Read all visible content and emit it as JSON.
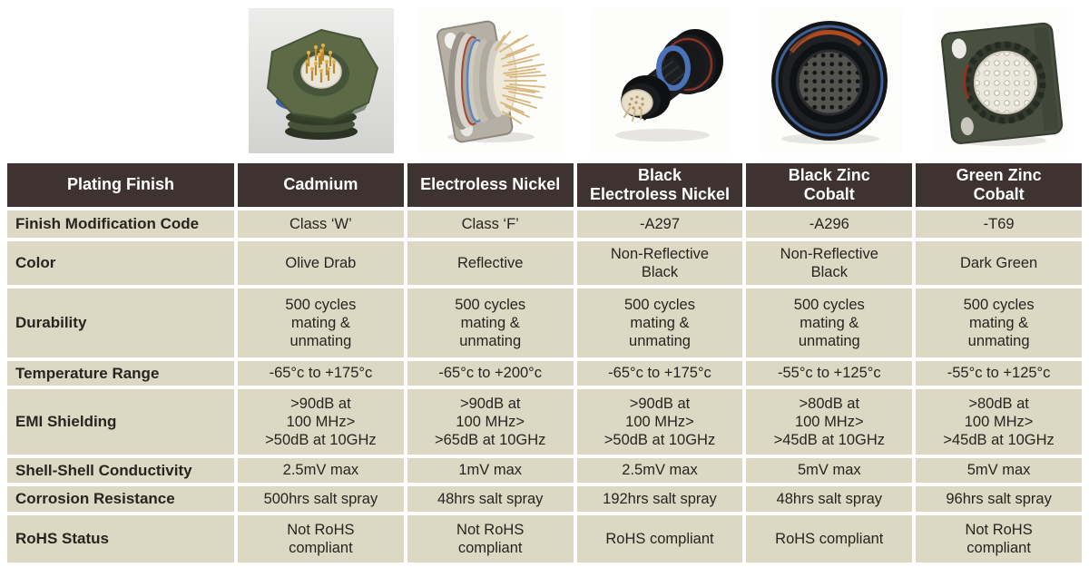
{
  "photos": [
    {
      "icon": "cadmium-connector-photo"
    },
    {
      "icon": "electroless-nickel-connector-photo"
    },
    {
      "icon": "black-electroless-nickel-connector-photo"
    },
    {
      "icon": "black-zinc-cobalt-connector-photo"
    },
    {
      "icon": "green-zinc-cobalt-connector-photo"
    }
  ],
  "table": {
    "header": [
      "Plating Finish",
      "Cadmium",
      "Electroless Nickel",
      "Black\nElectroless Nickel",
      "Black Zinc\nCobalt",
      "Green Zinc\nCobalt"
    ],
    "rows": [
      {
        "label": "Finish Modification Code",
        "cells": [
          "Class ‘W’",
          "Class ‘F’",
          "-A297",
          "-A296",
          "-T69"
        ]
      },
      {
        "label": "Color",
        "cells": [
          "Olive Drab",
          "Reflective",
          "Non-Reflective\nBlack",
          "Non-Reflective\nBlack",
          "Dark Green"
        ]
      },
      {
        "label": "Durability",
        "cells": [
          "500 cycles\nmating &\nunmating",
          "500 cycles\nmating &\nunmating",
          "500 cycles\nmating &\nunmating",
          "500 cycles\nmating &\nunmating",
          "500 cycles\nmating &\nunmating"
        ]
      },
      {
        "label": "Temperature Range",
        "cells": [
          "-65°c to +175°c",
          "-65°c to +200°c",
          "-65°c to +175°c",
          "-55°c to +125°c",
          "-55°c to +125°c"
        ]
      },
      {
        "label": "EMI Shielding",
        "cells": [
          ">90dB at\n100 MHz>\n>50dB at 10GHz",
          ">90dB at\n100 MHz>\n>65dB at 10GHz",
          ">90dB at\n100 MHz>\n>50dB at 10GHz",
          ">80dB at\n100 MHz>\n>45dB at 10GHz",
          ">80dB at\n100 MHz>\n>45dB at 10GHz"
        ]
      },
      {
        "label": "Shell-Shell Conductivity",
        "cells": [
          "2.5mV max",
          "1mV max",
          "2.5mV max",
          "5mV max",
          "5mV max"
        ]
      },
      {
        "label": "Corrosion Resistance",
        "cells": [
          "500hrs salt spray",
          "48hrs salt spray",
          "192hrs salt spray",
          "48hrs salt spray",
          "96hrs salt spray"
        ]
      },
      {
        "label": "RoHS Status",
        "cells": [
          "Not RoHS\ncompliant",
          "Not RoHS\ncompliant",
          "RoHS compliant",
          "RoHS compliant",
          "Not RoHS\ncompliant"
        ]
      }
    ]
  },
  "colors": {
    "header_bg": "#3e3331",
    "header_fg": "#ffffff",
    "cell_bg": "#dcd8c3",
    "cell_fg": "#29241f",
    "grid": "#ffffff",
    "accent_blue": "#3f6cb0",
    "accent_red": "#a04430",
    "olive_green": "#5c6a45",
    "nickel_silver": "#c2bcb1"
  }
}
